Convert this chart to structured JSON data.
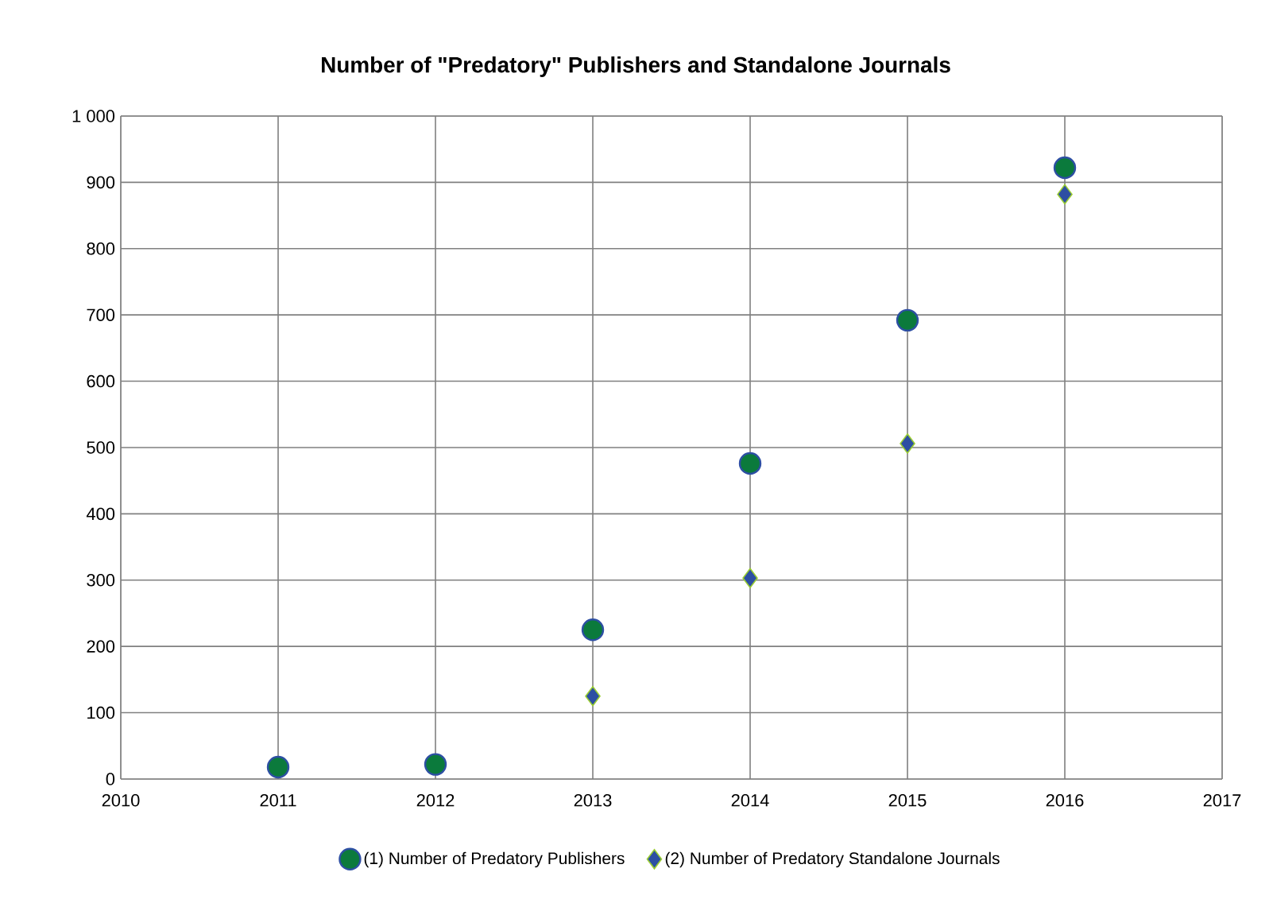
{
  "chart_data": {
    "type": "scatter",
    "title": "Number of \"Predatory\" Publishers and Standalone Journals",
    "x": [
      2011,
      2012,
      2013,
      2014,
      2015,
      2016
    ],
    "series": [
      {
        "name": "(1) Number of Predatory Publishers",
        "color": "#0b7a3c",
        "marker": "circle",
        "values": [
          18,
          22,
          225,
          476,
          692,
          922
        ]
      },
      {
        "name": "(2) Number of Predatory Standalone Journals",
        "color": "#2d4fa3",
        "marker": "diamond",
        "values": [
          null,
          null,
          125,
          303,
          506,
          882
        ]
      }
    ],
    "xlim": [
      2010,
      2017
    ],
    "xticks": [
      2010,
      2011,
      2012,
      2013,
      2014,
      2015,
      2016,
      2017
    ],
    "ylim": [
      0,
      1000
    ],
    "yticks": [
      0,
      100,
      200,
      300,
      400,
      500,
      600,
      700,
      800,
      900,
      {
        "value": 1000,
        "label": "1 000"
      }
    ],
    "grid": true,
    "legend": "bottom"
  }
}
